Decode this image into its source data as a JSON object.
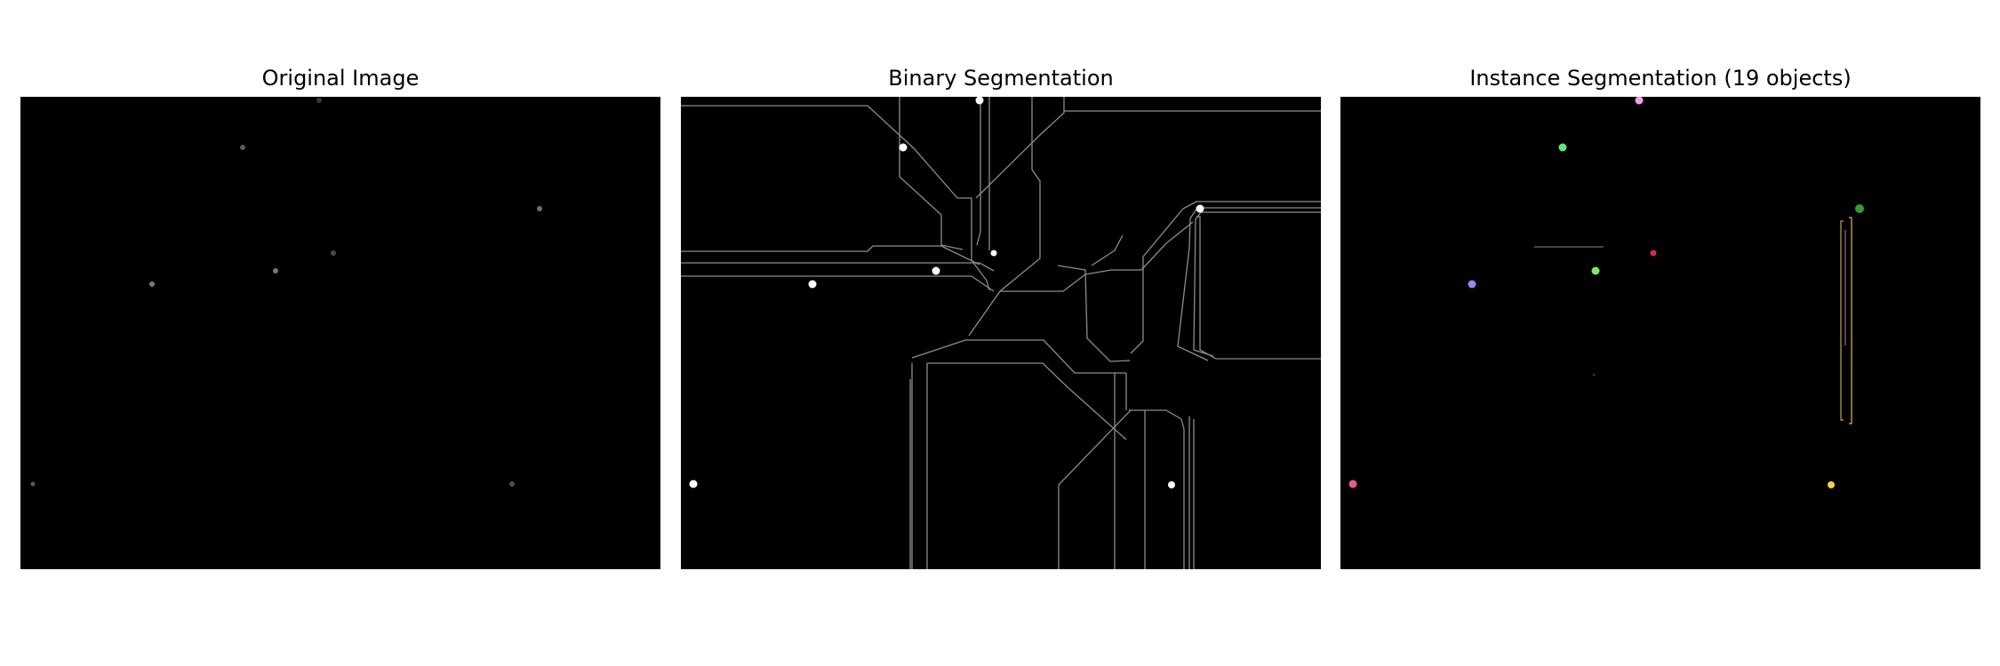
{
  "figure": {
    "panels": [
      {
        "title": "Original Image"
      },
      {
        "title": "Binary Segmentation"
      },
      {
        "title": "Instance Segmentation (19 objects)"
      }
    ]
  },
  "colors": {
    "background": "#000000",
    "foreground": "#ffffff",
    "boundary": "#8c8c8c",
    "instances": [
      "#f0a0f0",
      "#5ee87a",
      "#2e9e3a",
      "#c83246",
      "#8c8cf0",
      "#7ee860",
      "#e05c98",
      "#f0d24c",
      "#b8a24a",
      "#d8d8d8"
    ]
  }
}
